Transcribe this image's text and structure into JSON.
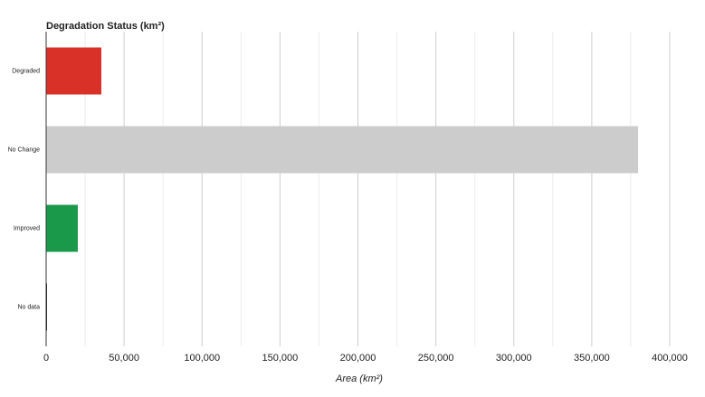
{
  "chart_data": {
    "type": "hbar",
    "title": "Degradation Status (km²)",
    "categories": [
      "Degraded",
      "No Change",
      "Improved",
      "No data"
    ],
    "values": [
      35400,
      379700,
      20300,
      500
    ],
    "colors": [
      "#d93127",
      "#cccccc",
      "#1b994b",
      "#222222"
    ],
    "xlabel": "Area (km²)",
    "xlim": [
      0,
      400000
    ],
    "xticks": [
      0,
      {
        "value": 50000,
        "label": "50,000"
      },
      {
        "value": 100000,
        "label": "100,000"
      },
      {
        "value": 150000,
        "label": "150,000"
      },
      {
        "value": 200000,
        "label": "200,000"
      },
      {
        "value": 250000,
        "label": "250,000"
      },
      {
        "value": 300000,
        "label": "300,000"
      },
      {
        "value": 350000,
        "label": "350,000"
      },
      {
        "value": 400000,
        "label": "400,000"
      }
    ],
    "minor_xticks": [
      25000,
      75000,
      125000,
      175000,
      225000,
      275000,
      325000,
      375000
    ],
    "grid": true
  }
}
